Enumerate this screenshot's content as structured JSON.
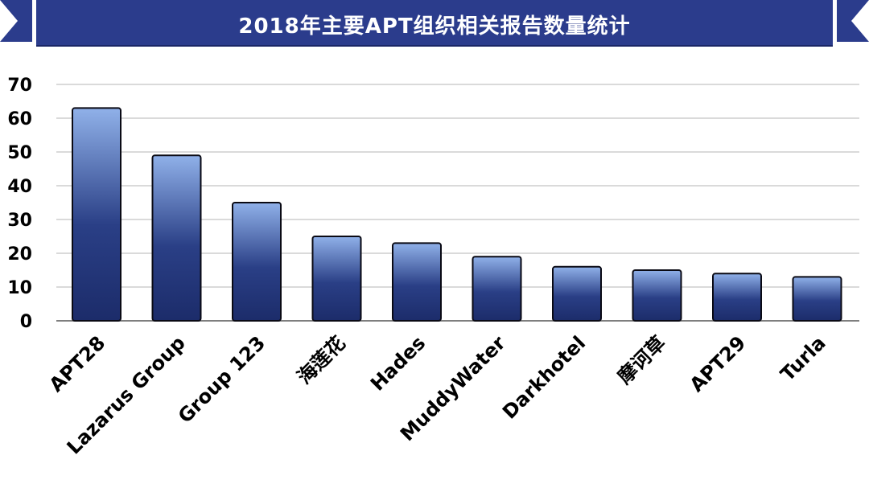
{
  "title": "2018年主要APT组织相关报告数量统计",
  "colors": {
    "banner": "#2b3c8c",
    "bar_top": "#8fb0e8",
    "bar_bottom": "#1e2f6e",
    "bar_outline": "#0a0a14",
    "grid": "#b5b5b5"
  },
  "chart_data": {
    "type": "bar",
    "title": "2018年主要APT组织相关报告数量统计",
    "categories": [
      "APT28",
      "Lazarus Group",
      "Group 123",
      "海莲花",
      "Hades",
      "MuddyWater",
      "Darkhotel",
      "摩诃草",
      "APT29",
      "Turla"
    ],
    "values": [
      63,
      49,
      35,
      25,
      23,
      19,
      16,
      15,
      14,
      13
    ],
    "yticks": [
      0,
      10,
      20,
      30,
      40,
      50,
      60,
      70
    ],
    "ylim": [
      0,
      70
    ],
    "grid": true,
    "xlabel": "",
    "ylabel": ""
  }
}
